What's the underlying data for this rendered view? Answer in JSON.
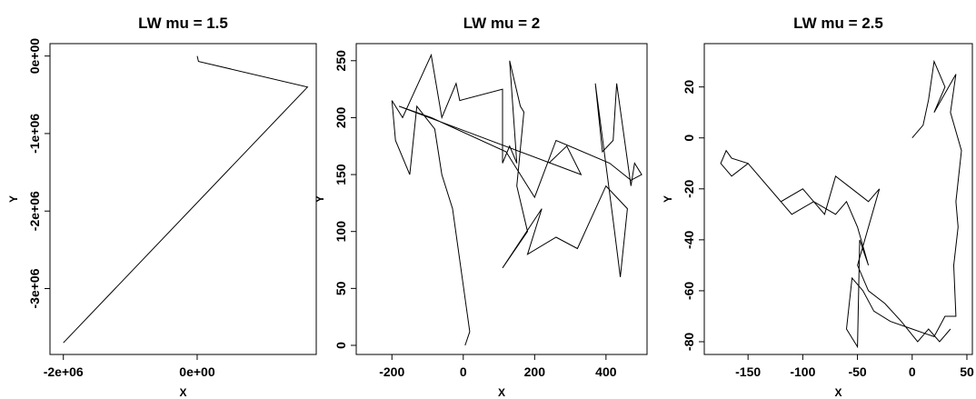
{
  "chart_data": [
    {
      "type": "line",
      "title": "LW mu = 1.5",
      "xlabel": "X",
      "ylabel": "Y",
      "x": [
        0,
        20000,
        1650000,
        -2000000
      ],
      "series": [
        {
          "color": "#000000",
          "values": [
            0,
            -70000,
            -400000,
            -3700000
          ]
        }
      ],
      "xlim": [
        -2200000,
        1780000
      ],
      "ylim": [
        -3850000,
        160000
      ],
      "xticks": [
        {
          "value": -2000000,
          "label": "-2e+06"
        },
        {
          "value": 0,
          "label": "0e+00"
        }
      ],
      "yticks": [
        {
          "value": 0,
          "label": "0e+00"
        },
        {
          "value": -1000000,
          "label": "-1e+06"
        },
        {
          "value": -2000000,
          "label": "-2e+06"
        },
        {
          "value": -3000000,
          "label": "-3e+06"
        }
      ]
    },
    {
      "type": "line",
      "title": "LW mu = 2",
      "xlabel": "X",
      "ylabel": "Y",
      "x": [
        5,
        18,
        -30,
        -60,
        -80,
        -130,
        -150,
        -190,
        -200,
        -170,
        -90,
        -60,
        -20,
        -10,
        110,
        110,
        130,
        150,
        130,
        160,
        170,
        150,
        180,
        110,
        220,
        180,
        260,
        320,
        400,
        460,
        440,
        420,
        370,
        390,
        420,
        430,
        470,
        480,
        500,
        470,
        410,
        260,
        200,
        120,
        -90,
        -180,
        330,
        290,
        240
      ],
      "series": [
        {
          "color": "#000000",
          "values": [
            0,
            12,
            120,
            150,
            190,
            210,
            150,
            180,
            215,
            200,
            255,
            200,
            230,
            215,
            225,
            160,
            175,
            160,
            250,
            210,
            205,
            140,
            100,
            68,
            120,
            80,
            95,
            85,
            140,
            120,
            60,
            110,
            230,
            170,
            180,
            230,
            140,
            160,
            150,
            145,
            160,
            180,
            130,
            170,
            200,
            210,
            150,
            175,
            160
          ]
        }
      ],
      "xlim": [
        -300,
        515
      ],
      "ylim": [
        -8,
        265
      ],
      "xticks": [
        -200,
        0,
        200,
        400
      ],
      "yticks": [
        0,
        50,
        100,
        150,
        200,
        250
      ]
    },
    {
      "type": "line",
      "title": "LW mu = 2.5",
      "xlabel": "X",
      "ylabel": "Y",
      "x": [
        0,
        10,
        15,
        20,
        25,
        30,
        20,
        40,
        35,
        45,
        40,
        42,
        38,
        40,
        30,
        20,
        0,
        -20,
        -35,
        -45,
        -55,
        -60,
        -50,
        -48,
        -40,
        -50,
        -60,
        -70,
        -90,
        -110,
        -130,
        -140,
        -150,
        -165,
        -175,
        -170,
        -165,
        -150,
        -120,
        -100,
        -80,
        -70,
        -55,
        -40,
        -30,
        -50,
        -40,
        -25,
        -10,
        5,
        15,
        25,
        35
      ],
      "series": [
        {
          "color": "#000000",
          "values": [
            0,
            5,
            15,
            30,
            25,
            20,
            10,
            25,
            10,
            -5,
            -25,
            -35,
            -50,
            -70,
            -70,
            -78,
            -75,
            -72,
            -68,
            -60,
            -55,
            -75,
            -82,
            -40,
            -50,
            -35,
            -25,
            -30,
            -25,
            -30,
            -20,
            -15,
            -10,
            -15,
            -10,
            -5,
            -8,
            -10,
            -25,
            -20,
            -30,
            -15,
            -20,
            -25,
            -20,
            -50,
            -60,
            -65,
            -72,
            -80,
            -75,
            -80,
            -75
          ]
        }
      ],
      "xlim": [
        -190,
        55
      ],
      "ylim": [
        -85,
        37
      ],
      "xticks": [
        -150,
        -100,
        -50,
        0,
        50
      ],
      "yticks": [
        20,
        0,
        -20,
        -40,
        -60,
        -80
      ]
    }
  ]
}
